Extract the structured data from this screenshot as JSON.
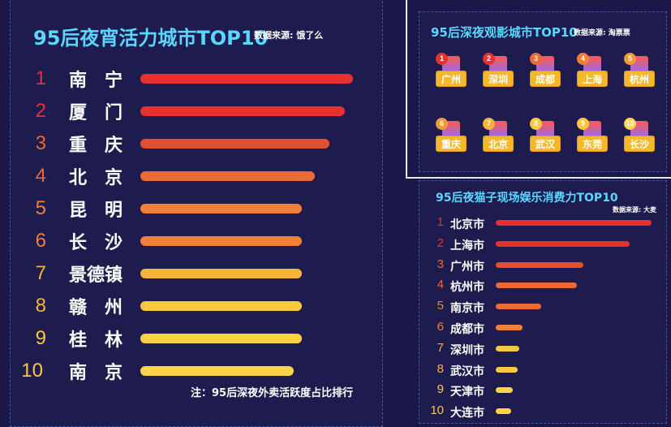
{
  "colors": {
    "background": "#1b1748",
    "title": "#59d8ff",
    "red": "#e8312f",
    "orange": "#ec6a34",
    "amber": "#f39a38",
    "yellow": "#ffd34a"
  },
  "chart_data": [
    {
      "type": "bar",
      "title": "95后夜宵活力城市TOP10",
      "source_label": "数据来源:",
      "source_logo": "饿了么",
      "note": "注：95后深夜外卖活跃度占比排行",
      "ranks": [
        "1",
        "2",
        "3",
        "4",
        "5",
        "6",
        "7",
        "8",
        "9",
        "10"
      ],
      "categories": [
        "南　宁",
        "厦　门",
        "重　庆",
        "北　京",
        "昆　明",
        "长　沙",
        "景德镇",
        "赣　州",
        "桂　林",
        "南　京"
      ],
      "values": [
        100,
        96,
        89,
        82,
        76,
        76,
        76,
        76,
        76,
        72
      ],
      "bar_colors": [
        "#e8312f",
        "#e8312f",
        "#e2502f",
        "#ec6a34",
        "#f08036",
        "#f08036",
        "#f7b33c",
        "#fbc83f",
        "#fdd048",
        "#ffd34a"
      ],
      "rank_colors": [
        "#e8312f",
        "#e8312f",
        "#ec6a34",
        "#ec6a34",
        "#f08036",
        "#f08036",
        "#f7b33c",
        "#f7b33c",
        "#fbc83f",
        "#fbc83f"
      ]
    },
    {
      "type": "table",
      "title": "95后深夜观影城市TOP10",
      "source_label": "数据来源:",
      "source_logo": "淘票票",
      "ranks": [
        "1",
        "2",
        "3",
        "4",
        "5",
        "6",
        "7",
        "8",
        "9",
        "10"
      ],
      "categories": [
        "广州",
        "深圳",
        "成都",
        "上海",
        "杭州",
        "重庆",
        "北京",
        "武汉",
        "东莞",
        "长沙"
      ],
      "badge_colors": [
        "#e8312f",
        "#e8312f",
        "#ec6a34",
        "#f08036",
        "#f39a38",
        "#f39a38",
        "#f7b33c",
        "#fbc83f",
        "#fbc83f",
        "#ffd34a"
      ]
    },
    {
      "type": "bar",
      "title": "95后夜猫子现场娱乐消费力TOP10",
      "source_label": "数据来源:",
      "source_logo": "大麦",
      "ranks": [
        "1",
        "2",
        "3",
        "4",
        "5",
        "6",
        "7",
        "8",
        "9",
        "10"
      ],
      "categories": [
        "北京市",
        "上海市",
        "广州市",
        "杭州市",
        "南京市",
        "成都市",
        "深圳市",
        "武汉市",
        "天津市",
        "大连市"
      ],
      "values": [
        100,
        86,
        56,
        52,
        29,
        17,
        15,
        14,
        11,
        10
      ],
      "bar_colors": [
        "#e8312f",
        "#e8312f",
        "#e2502f",
        "#ec6a34",
        "#ec6a34",
        "#f08036",
        "#fbc83f",
        "#fbc83f",
        "#ffd34a",
        "#ffd34a"
      ],
      "rank_colors": [
        "#e8312f",
        "#e8312f",
        "#ec6a34",
        "#ec6a34",
        "#f08036",
        "#f08036",
        "#f7b33c",
        "#f7b33c",
        "#fbc83f",
        "#fbc83f"
      ]
    }
  ]
}
